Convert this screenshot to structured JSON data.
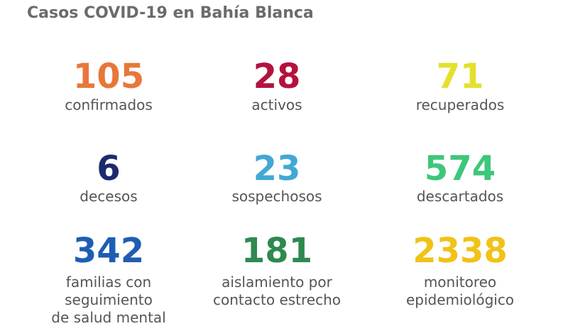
{
  "title": "Casos COVID-19 en Bahía Blanca",
  "stats": [
    {
      "value": 105,
      "lines": [
        "confirmados"
      ],
      "color": "#e8773b"
    },
    {
      "value": 28,
      "lines": [
        "activos"
      ],
      "color": "#b3123f"
    },
    {
      "value": 71,
      "lines": [
        "recuperados"
      ],
      "color": "#e4e02e"
    },
    {
      "value": 6,
      "lines": [
        "decesos"
      ],
      "color": "#1d2a6d"
    },
    {
      "value": 23,
      "lines": [
        "sospechosos"
      ],
      "color": "#41a8d5"
    },
    {
      "value": 574,
      "lines": [
        "descartados"
      ],
      "color": "#3dc77b"
    },
    {
      "value": 342,
      "lines": [
        "familias con",
        "seguimiento",
        "de salud mental"
      ],
      "color": "#1f5db3"
    },
    {
      "value": 181,
      "lines": [
        "aislamiento por",
        "contacto estrecho"
      ],
      "color": "#2d8a4f"
    },
    {
      "value": 2338,
      "lines": [
        "monitoreo",
        "epidemiológico"
      ],
      "color": "#f1c217"
    }
  ]
}
